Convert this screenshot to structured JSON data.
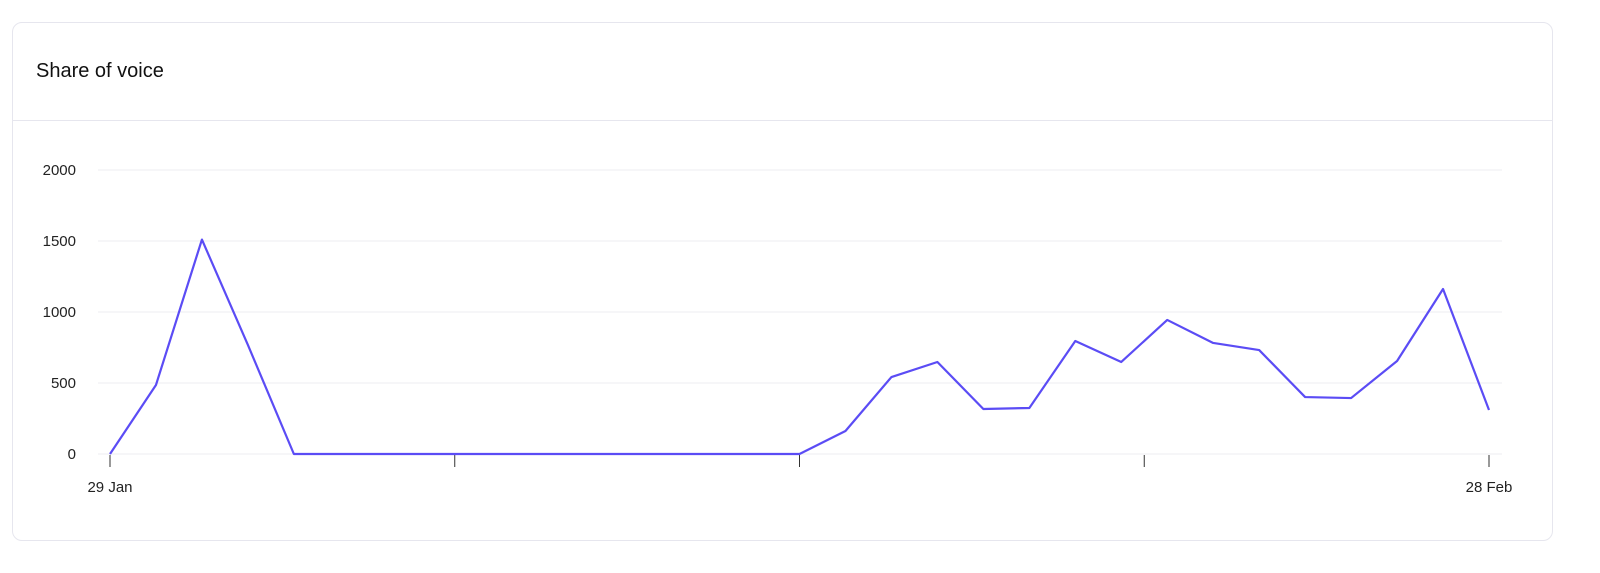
{
  "card": {
    "title": "Share of voice"
  },
  "chart_data": {
    "type": "line",
    "title": "Share of voice",
    "xlabel": "",
    "ylabel": "",
    "x_start": "29 Jan",
    "x_end": "28 Feb",
    "x_tick_labels": [
      "29 Jan",
      "",
      "",
      "",
      "28 Feb"
    ],
    "y_ticks": [
      0,
      500,
      1000,
      1500,
      2000
    ],
    "ylim": [
      0,
      2000
    ],
    "grid": "horizontal",
    "line_color": "#5b4cf5",
    "series": [
      {
        "values": [
          0,
          486,
          1510,
          768,
          0,
          0,
          0,
          0,
          0,
          0,
          0,
          0,
          0,
          0,
          0,
          0,
          162,
          542,
          648,
          317,
          324,
          796,
          648,
          944,
          782,
          732,
          401,
          394,
          655,
          1162,
          310
        ]
      }
    ]
  }
}
